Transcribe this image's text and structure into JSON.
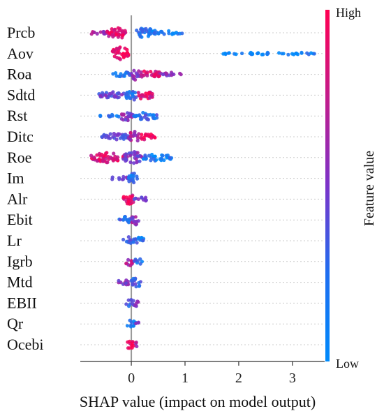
{
  "chart_data": {
    "type": "scatter",
    "subtype": "shap-beeswarm",
    "title": "",
    "xlabel": "SHAP value (impact on model output)",
    "ylabel": "",
    "xlim": [
      -0.95,
      3.6
    ],
    "xticks": [
      0,
      1,
      2,
      3
    ],
    "xtick_labels": [
      "0",
      "1",
      "2",
      "3"
    ],
    "zero_line": true,
    "row_gridlines": "dotted",
    "colorbar": {
      "title": "Feature value",
      "high_label": "High",
      "low_label": "Low",
      "high_color": "#ff0d57",
      "mid_color": "#7b33c9",
      "low_color": "#1e88e5"
    },
    "features": [
      {
        "name": "Prcb",
        "segments": [
          {
            "x0": -0.8,
            "x1": -0.45,
            "w": 3,
            "feat": 0.65
          },
          {
            "x0": -0.45,
            "x1": -0.1,
            "w": 9,
            "feat": 0.85
          },
          {
            "x0": 0.05,
            "x1": 0.45,
            "w": 7,
            "feat": 0.1
          },
          {
            "x0": 0.45,
            "x1": 0.95,
            "w": 3,
            "feat": 0.08
          }
        ]
      },
      {
        "name": "Aov",
        "segments": [
          {
            "x0": -0.35,
            "x1": -0.05,
            "w": 10,
            "feat": 0.97
          },
          {
            "x0": 1.7,
            "x1": 3.45,
            "w": 2,
            "feat": 0.03
          }
        ]
      },
      {
        "name": "Roa",
        "segments": [
          {
            "x0": -0.35,
            "x1": 0.0,
            "w": 4,
            "feat": 0.15
          },
          {
            "x0": 0.0,
            "x1": 0.15,
            "w": 8,
            "feat": 0.5
          },
          {
            "x0": 0.15,
            "x1": 0.55,
            "w": 6,
            "feat": 0.8
          },
          {
            "x0": 0.55,
            "x1": 0.95,
            "w": 3,
            "feat": 0.6
          }
        ]
      },
      {
        "name": "Sdtd",
        "segments": [
          {
            "x0": -0.6,
            "x1": -0.1,
            "w": 5,
            "feat": 0.4
          },
          {
            "x0": -0.1,
            "x1": 0.1,
            "w": 9,
            "feat": 0.2
          },
          {
            "x0": 0.1,
            "x1": 0.4,
            "w": 6,
            "feat": 0.85
          }
        ]
      },
      {
        "name": "Rst",
        "segments": [
          {
            "x0": -0.6,
            "x1": -0.2,
            "w": 2,
            "feat": 0.1
          },
          {
            "x0": -0.2,
            "x1": 0.05,
            "w": 8,
            "feat": 0.55
          },
          {
            "x0": 0.05,
            "x1": 0.5,
            "w": 6,
            "feat": 0.2
          }
        ]
      },
      {
        "name": "Ditc",
        "segments": [
          {
            "x0": -0.55,
            "x1": -0.05,
            "w": 5,
            "feat": 0.35
          },
          {
            "x0": -0.05,
            "x1": 0.15,
            "w": 8,
            "feat": 0.7
          },
          {
            "x0": 0.15,
            "x1": 0.45,
            "w": 5,
            "feat": 0.95
          }
        ]
      },
      {
        "name": "Roe",
        "segments": [
          {
            "x0": -0.75,
            "x1": -0.15,
            "w": 7,
            "feat": 0.85
          },
          {
            "x0": -0.15,
            "x1": 0.2,
            "w": 9,
            "feat": 0.5
          },
          {
            "x0": 0.2,
            "x1": 0.75,
            "w": 5,
            "feat": 0.08
          }
        ]
      },
      {
        "name": "Im",
        "segments": [
          {
            "x0": -0.4,
            "x1": -0.05,
            "w": 3,
            "feat": 0.45
          },
          {
            "x0": -0.05,
            "x1": 0.12,
            "w": 8,
            "feat": 0.15
          }
        ]
      },
      {
        "name": "Alr",
        "segments": [
          {
            "x0": -0.15,
            "x1": 0.05,
            "w": 8,
            "feat": 0.9
          },
          {
            "x0": 0.05,
            "x1": 0.3,
            "w": 4,
            "feat": 0.4
          }
        ]
      },
      {
        "name": "Ebit",
        "segments": [
          {
            "x0": -0.25,
            "x1": 0.0,
            "w": 5,
            "feat": 0.2
          },
          {
            "x0": 0.0,
            "x1": 0.15,
            "w": 8,
            "feat": 0.55
          }
        ]
      },
      {
        "name": "Lr",
        "segments": [
          {
            "x0": -0.15,
            "x1": 0.02,
            "w": 6,
            "feat": 0.3
          },
          {
            "x0": 0.02,
            "x1": 0.25,
            "w": 6,
            "feat": 0.15
          }
        ]
      },
      {
        "name": "Igrb",
        "segments": [
          {
            "x0": -0.1,
            "x1": 0.05,
            "w": 6,
            "feat": 0.7
          },
          {
            "x0": 0.05,
            "x1": 0.2,
            "w": 5,
            "feat": 0.2
          }
        ]
      },
      {
        "name": "Mtd",
        "segments": [
          {
            "x0": -0.25,
            "x1": 0.0,
            "w": 4,
            "feat": 0.5
          },
          {
            "x0": 0.0,
            "x1": 0.2,
            "w": 7,
            "feat": 0.25
          }
        ]
      },
      {
        "name": "EBII",
        "segments": [
          {
            "x0": -0.1,
            "x1": 0.05,
            "w": 6,
            "feat": 0.25
          },
          {
            "x0": 0.05,
            "x1": 0.15,
            "w": 5,
            "feat": 0.55
          }
        ]
      },
      {
        "name": "Qr",
        "segments": [
          {
            "x0": -0.08,
            "x1": 0.08,
            "w": 6,
            "feat": 0.2
          },
          {
            "x0": 0.08,
            "x1": 0.15,
            "w": 3,
            "feat": 0.5
          }
        ]
      },
      {
        "name": "Ocebi",
        "segments": [
          {
            "x0": -0.08,
            "x1": 0.05,
            "w": 7,
            "feat": 0.9
          },
          {
            "x0": 0.05,
            "x1": 0.12,
            "w": 4,
            "feat": 0.6
          }
        ]
      }
    ]
  }
}
